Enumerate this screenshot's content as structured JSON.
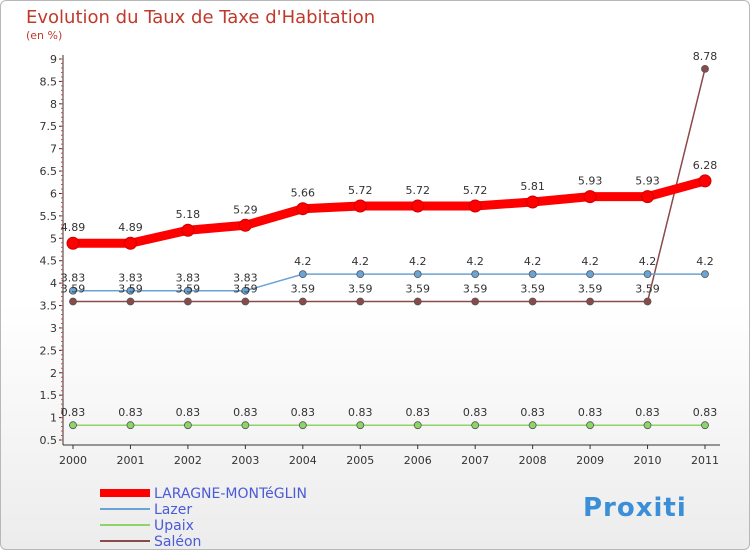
{
  "chart_data": {
    "type": "line",
    "title": "Evolution du Taux de Taxe d'Habitation",
    "subtitle": "(en %)",
    "xlabel": "",
    "ylabel": "",
    "ylim": [
      0.5,
      9
    ],
    "x": [
      "2000",
      "2001",
      "2002",
      "2003",
      "2004",
      "2005",
      "2006",
      "2007",
      "2008",
      "2009",
      "2010",
      "2011"
    ],
    "y_ticks": [
      "0.5",
      "1",
      "1.5",
      "2",
      "2.5",
      "3",
      "3.5",
      "4",
      "4.5",
      "5",
      "5.5",
      "6",
      "6.5",
      "7",
      "7.5",
      "8",
      "8.5",
      "9"
    ],
    "grid": false,
    "legend_position": "bottom-left",
    "series": [
      {
        "name": "LARAGNE-MONTéGLIN",
        "color": "#ff0000",
        "values": [
          4.89,
          4.89,
          5.18,
          5.29,
          5.66,
          5.72,
          5.72,
          5.72,
          5.81,
          5.93,
          5.93,
          6.28
        ],
        "labels": [
          "4.89",
          "4.89",
          "5.18",
          "5.29",
          "5.66",
          "5.72",
          "5.72",
          "5.72",
          "5.81",
          "5.93",
          "5.93",
          "6.28"
        ]
      },
      {
        "name": "Lazer",
        "color": "#6aa3d5",
        "values": [
          3.83,
          3.83,
          3.83,
          3.83,
          4.2,
          4.2,
          4.2,
          4.2,
          4.2,
          4.2,
          4.2,
          4.2
        ],
        "labels": [
          "3.83",
          "3.83",
          "3.83",
          "3.83",
          "4.2",
          "4.2",
          "4.2",
          "4.2",
          "4.2",
          "4.2",
          "4.2",
          "4.2"
        ]
      },
      {
        "name": "Upaix",
        "color": "#8fd468",
        "values": [
          0.83,
          0.83,
          0.83,
          0.83,
          0.83,
          0.83,
          0.83,
          0.83,
          0.83,
          0.83,
          0.83,
          0.83
        ],
        "labels": [
          "0.83",
          "0.83",
          "0.83",
          "0.83",
          "0.83",
          "0.83",
          "0.83",
          "0.83",
          "0.83",
          "0.83",
          "0.83",
          "0.83"
        ]
      },
      {
        "name": "Saléon",
        "color": "#8b4a4a",
        "values": [
          3.59,
          3.59,
          3.59,
          3.59,
          3.59,
          3.59,
          3.59,
          3.59,
          3.59,
          3.59,
          3.59,
          8.78
        ],
        "labels": [
          "3.59",
          "3.59",
          "3.59",
          "3.59",
          "3.59",
          "3.59",
          "3.59",
          "3.59",
          "3.59",
          "3.59",
          "3.59",
          "8.78"
        ]
      }
    ]
  },
  "watermark": "Proxiti"
}
